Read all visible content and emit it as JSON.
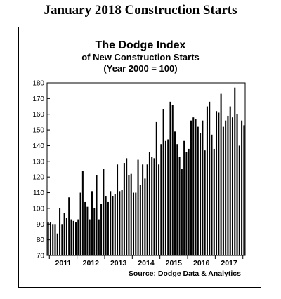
{
  "page_title": "January 2018 Construction Starts",
  "chart_data": {
    "type": "bar",
    "title": "The Dodge Index",
    "subtitle_lines": [
      "of New Construction Starts",
      "(Year 2000 = 100)"
    ],
    "source": "Source:  Dodge Data & Analytics",
    "xlabel": "",
    "ylabel": "",
    "ylim": [
      70,
      180
    ],
    "yticks": [
      70,
      80,
      90,
      100,
      110,
      120,
      130,
      140,
      150,
      160,
      170,
      180
    ],
    "year_labels": [
      "2011",
      "2012",
      "2013",
      "2014",
      "2015",
      "2016",
      "2017"
    ],
    "x_start": "2010-12",
    "x_end": "2018-01",
    "grid": false,
    "values": [
      91,
      91,
      90,
      90,
      84,
      100,
      90,
      97,
      94,
      107,
      93,
      92,
      91,
      93,
      110,
      124,
      104,
      101,
      93,
      111,
      100,
      121,
      93,
      103,
      125,
      108,
      104,
      111,
      108,
      109,
      128,
      111,
      112,
      129,
      132,
      121,
      122,
      110,
      110,
      131,
      115,
      128,
      119,
      128,
      136,
      133,
      132,
      155,
      128,
      141,
      163,
      143,
      144,
      168,
      166,
      149,
      141,
      133,
      125,
      143,
      136,
      138,
      156,
      158,
      157,
      152,
      148,
      156,
      137,
      165,
      168,
      147,
      138,
      162,
      161,
      173,
      152,
      156,
      159,
      165,
      158,
      177,
      160,
      140,
      156,
      153
    ]
  }
}
